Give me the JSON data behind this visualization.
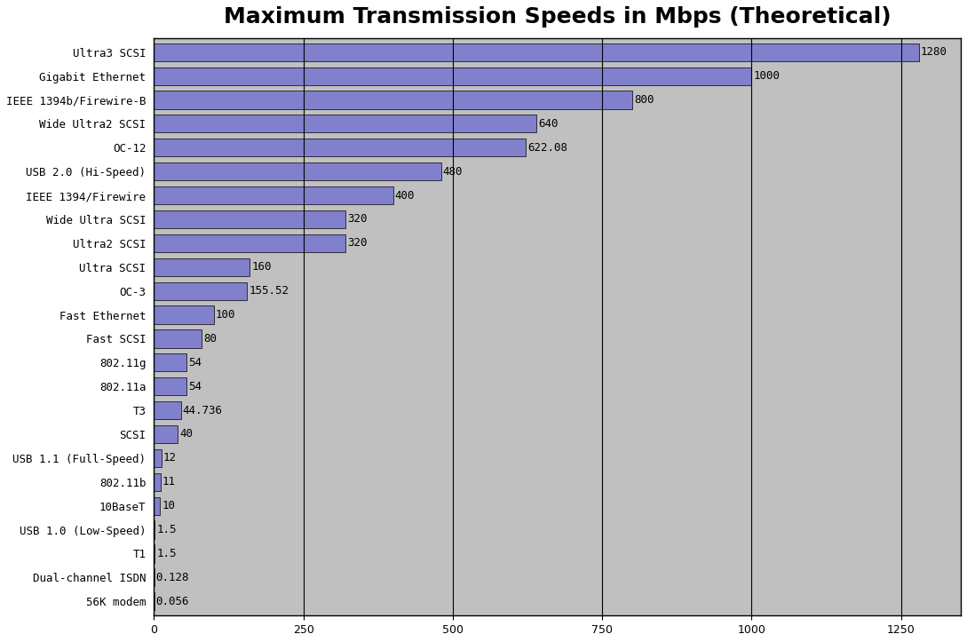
{
  "title": "Maximum Transmission Speeds in Mbps (Theoretical)",
  "categories": [
    "Ultra3 SCSI",
    "Gigabit Ethernet",
    "IEEE 1394b/Firewire-B",
    "Wide Ultra2 SCSI",
    "OC-12",
    "USB 2.0 (Hi-Speed)",
    "IEEE 1394/Firewire",
    "Wide Ultra SCSI",
    "Ultra2 SCSI",
    "Ultra SCSI",
    "OC-3",
    "Fast Ethernet",
    "Fast SCSI",
    "802.11g",
    "802.11a",
    "T3",
    "SCSI",
    "USB 1.1 (Full-Speed)",
    "802.11b",
    "10BaseT",
    "USB 1.0 (Low-Speed)",
    "T1",
    "Dual-channel ISDN",
    "56K modem"
  ],
  "values": [
    1280,
    1000,
    800,
    640,
    622.08,
    480,
    400,
    320,
    320,
    160,
    155.52,
    100,
    80,
    54,
    54,
    44.736,
    40,
    12,
    11,
    10,
    1.5,
    1.5,
    0.128,
    0.056
  ],
  "value_labels": [
    "1280",
    "1000",
    "800",
    "640",
    "622.08",
    "480",
    "400",
    "320",
    "320",
    "160",
    "155.52",
    "100",
    "80",
    "54",
    "54",
    "44.736",
    "40",
    "12",
    "11",
    "10",
    "1.5",
    "1.5",
    "0.128",
    "0.056"
  ],
  "bar_color": "#8080cc",
  "bar_edge_color": "#000000",
  "fig_background_color": "#ffffff",
  "plot_bg_color": "#c0c0c0",
  "title_fontsize": 18,
  "label_fontsize": 9,
  "tick_fontsize": 9,
  "xlim": [
    0,
    1350
  ],
  "xticks": [
    0,
    250,
    500,
    750,
    1000,
    1250
  ],
  "grid_color": "#000000",
  "grid_linewidth": 0.8,
  "bar_height": 0.75
}
